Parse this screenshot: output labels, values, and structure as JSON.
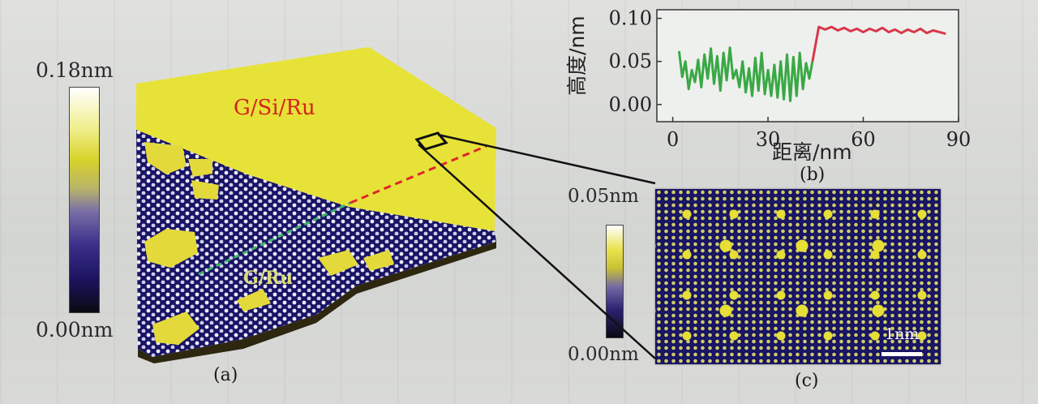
{
  "panel_a": {
    "colorbar_max": "0.18nm",
    "colorbar_min": "0.00nm",
    "region_top_label": "G/Si/Ru",
    "region_bottom_label": "G/Ru",
    "panel_label": "(a)"
  },
  "panel_b": {
    "panel_label": "(b)"
  },
  "panel_c": {
    "colorbar_max": "0.05nm",
    "colorbar_min": "0.00nm",
    "scale_bar_label": "1nm",
    "panel_label": "(c)"
  },
  "colors": {
    "gsiru_text": "#d4241c",
    "profile_green": "#3aa845",
    "profile_red": "#d8384a",
    "substrate_yellow": "#e9e43a",
    "lattice_blue": "#1c1766"
  },
  "chart_data": {
    "type": "line",
    "xlabel": "距离/nm",
    "ylabel": "高度/nm",
    "xlim": [
      -5,
      90
    ],
    "ylim": [
      -0.02,
      0.11
    ],
    "xticks": [
      "0",
      "30",
      "60",
      "90"
    ],
    "yticks": [
      "0.00",
      "0.05",
      "0.10"
    ],
    "grid": false,
    "series": [
      {
        "color": "#3aa845",
        "x": [
          2,
          3,
          4,
          5,
          6,
          7,
          8,
          9,
          10,
          11,
          12,
          13,
          14,
          15,
          16,
          17,
          18,
          19,
          20,
          21,
          22,
          23,
          24,
          25,
          26,
          27,
          28,
          29,
          30,
          31,
          32,
          33,
          34,
          35,
          36,
          37,
          38,
          39,
          40,
          41,
          42,
          43,
          44
        ],
        "y": [
          0.062,
          0.032,
          0.05,
          0.018,
          0.04,
          0.026,
          0.052,
          0.02,
          0.058,
          0.03,
          0.065,
          0.024,
          0.056,
          0.016,
          0.06,
          0.028,
          0.066,
          0.03,
          0.04,
          0.02,
          0.05,
          0.014,
          0.042,
          0.01,
          0.054,
          0.016,
          0.06,
          0.012,
          0.04,
          0.01,
          0.046,
          0.008,
          0.05,
          0.006,
          0.058,
          0.004,
          0.055,
          0.01,
          0.06,
          0.018,
          0.048,
          0.03,
          0.05
        ]
      },
      {
        "color": "#d8384a",
        "x": [
          44,
          45,
          46,
          48,
          50,
          52,
          54,
          56,
          58,
          60,
          62,
          64,
          66,
          68,
          70,
          72,
          74,
          76,
          78,
          80,
          82,
          84,
          86
        ],
        "y": [
          0.05,
          0.07,
          0.09,
          0.087,
          0.09,
          0.086,
          0.089,
          0.085,
          0.088,
          0.084,
          0.088,
          0.085,
          0.089,
          0.084,
          0.087,
          0.083,
          0.087,
          0.084,
          0.088,
          0.083,
          0.086,
          0.084,
          0.082
        ]
      }
    ]
  }
}
